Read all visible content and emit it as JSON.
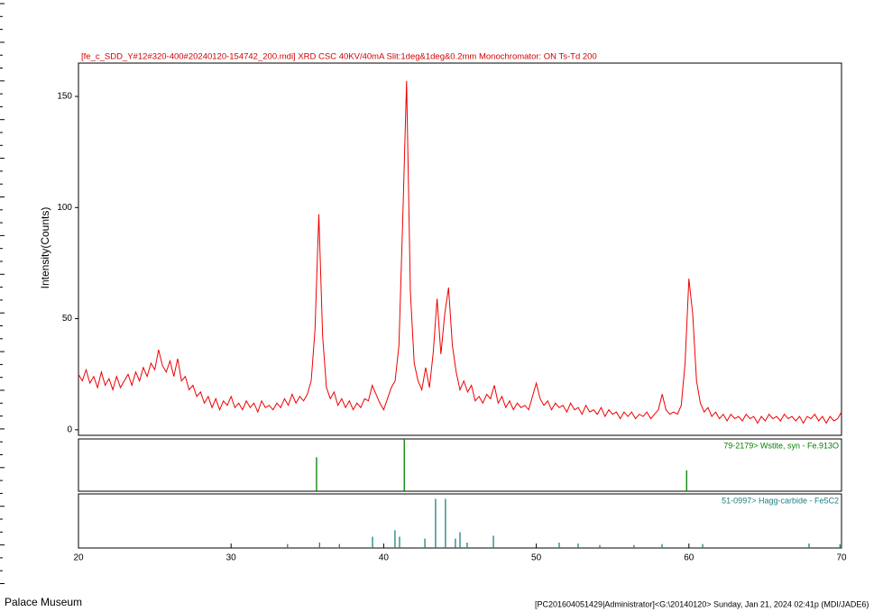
{
  "chart_data": [
    {
      "type": "line",
      "title": "[fe_c_SDD_Y#12#320-400#20240120-154742_200.mdi] XRD CSC 40KV/40mA Slit:1deg&1deg&0.2mm Monochromator: ON Ts-Td 200",
      "ylabel": "Intensity(Counts)",
      "x": [
        20,
        20.25,
        20.5,
        20.75,
        21,
        21.25,
        21.5,
        21.75,
        22,
        22.25,
        22.5,
        22.75,
        23,
        23.25,
        23.5,
        23.75,
        24,
        24.25,
        24.5,
        24.75,
        25,
        25.25,
        25.5,
        25.75,
        26,
        26.25,
        26.5,
        26.75,
        27,
        27.25,
        27.5,
        27.75,
        28,
        28.25,
        28.5,
        28.75,
        29,
        29.25,
        29.5,
        29.75,
        30,
        30.25,
        30.5,
        30.75,
        31,
        31.25,
        31.5,
        31.75,
        32,
        32.25,
        32.5,
        32.75,
        33,
        33.25,
        33.5,
        33.75,
        34,
        34.25,
        34.5,
        34.75,
        35,
        35.25,
        35.5,
        35.75,
        36,
        36.25,
        36.5,
        36.75,
        37,
        37.25,
        37.5,
        37.75,
        38,
        38.25,
        38.5,
        38.75,
        39,
        39.25,
        39.5,
        39.75,
        40,
        40.25,
        40.5,
        40.75,
        41,
        41.25,
        41.5,
        41.75,
        42,
        42.25,
        42.5,
        42.75,
        43,
        43.25,
        43.5,
        43.75,
        44,
        44.25,
        44.5,
        44.75,
        45,
        45.25,
        45.5,
        45.75,
        46,
        46.25,
        46.5,
        46.75,
        47,
        47.25,
        47.5,
        47.75,
        48,
        48.25,
        48.5,
        48.75,
        49,
        49.25,
        49.5,
        49.75,
        50,
        50.25,
        50.5,
        50.75,
        51,
        51.25,
        51.5,
        51.75,
        52,
        52.25,
        52.5,
        52.75,
        53,
        53.25,
        53.5,
        53.75,
        54,
        54.25,
        54.5,
        54.75,
        55,
        55.25,
        55.5,
        55.75,
        56,
        56.25,
        56.5,
        56.75,
        57,
        57.25,
        57.5,
        57.75,
        58,
        58.25,
        58.5,
        58.75,
        59,
        59.25,
        59.5,
        59.75,
        60,
        60.25,
        60.5,
        60.75,
        61,
        61.25,
        61.5,
        61.75,
        62,
        62.25,
        62.5,
        62.75,
        63,
        63.25,
        63.5,
        63.75,
        64,
        64.25,
        64.5,
        64.75,
        65,
        65.25,
        65.5,
        65.75,
        66,
        66.25,
        66.5,
        66.75,
        67,
        67.25,
        67.5,
        67.75,
        68,
        68.25,
        68.5,
        68.75,
        69,
        69.25,
        69.5,
        69.75,
        70
      ],
      "series": [
        {
          "color": "#ee0000",
          "values": [
            25,
            22,
            27,
            21,
            24,
            19,
            26,
            20,
            23,
            18,
            24,
            19,
            22,
            25,
            20,
            26,
            22,
            28,
            24,
            30,
            27,
            36,
            29,
            26,
            31,
            24,
            32,
            22,
            24,
            18,
            20,
            15,
            17,
            12,
            15,
            10,
            14,
            9,
            13,
            11,
            15,
            10,
            12,
            9,
            13,
            10,
            12,
            8,
            13,
            10,
            11,
            9,
            12,
            10,
            14,
            11,
            16,
            12,
            15,
            13,
            16,
            22,
            45,
            97,
            42,
            19,
            14,
            17,
            11,
            14,
            10,
            13,
            9,
            12,
            10,
            14,
            13,
            20,
            16,
            12,
            9,
            14,
            19,
            22,
            38,
            95,
            157,
            62,
            30,
            22,
            18,
            28,
            19,
            35,
            59,
            34,
            52,
            64,
            38,
            26,
            18,
            22,
            17,
            20,
            13,
            15,
            12,
            16,
            14,
            20,
            12,
            15,
            10,
            13,
            9,
            12,
            10,
            11,
            9,
            15,
            21,
            14,
            11,
            13,
            9,
            12,
            10,
            11,
            8,
            12,
            9,
            10,
            7,
            11,
            8,
            9,
            7,
            10,
            6,
            9,
            7,
            8,
            5,
            8,
            6,
            8,
            5,
            7,
            6,
            8,
            5,
            7,
            9,
            16,
            9,
            7,
            8,
            7,
            11,
            30,
            68,
            52,
            22,
            12,
            8,
            10,
            6,
            8,
            5,
            7,
            4,
            7,
            5,
            6,
            4,
            7,
            5,
            6,
            3,
            6,
            4,
            7,
            5,
            6,
            4,
            7,
            5,
            6,
            4,
            6,
            3,
            6,
            5,
            7,
            4,
            6,
            3,
            6,
            4,
            5,
            8
          ]
        }
      ],
      "xlim": [
        20,
        70
      ],
      "ylim": [
        -2.5,
        165
      ],
      "yticks": [
        0,
        50,
        100,
        150
      ]
    },
    {
      "type": "bar",
      "x": [
        35.6,
        41.35,
        59.85
      ],
      "series": [
        {
          "name": "79-2179> Wstite, syn - Fe.913O",
          "color": "#008000",
          "values": [
            65,
            100,
            40
          ]
        }
      ],
      "xlim": [
        20,
        70
      ],
      "ylim": [
        0,
        100
      ]
    },
    {
      "type": "bar",
      "x": [
        33.7,
        35.8,
        37.1,
        39.27,
        40.74,
        41.04,
        42.7,
        43.4,
        44.05,
        44.7,
        45,
        45.47,
        47.19,
        51.5,
        52.74,
        54.16,
        56.4,
        58.24,
        60.9,
        67.87,
        69.9
      ],
      "series": [
        {
          "name": "51-0997> Hagg-carbide - Fe5C2",
          "color": "#1f7f7f",
          "values": [
            8,
            11,
            8,
            23,
            36,
            23,
            19,
            100,
            100,
            19,
            32,
            11,
            25,
            11,
            9,
            6,
            6,
            8,
            8,
            9,
            8
          ]
        }
      ],
      "xlim": [
        20,
        70
      ],
      "ylim": [
        0,
        110
      ],
      "xticks": [
        20,
        30,
        40,
        50,
        60,
        70
      ]
    }
  ],
  "footer": {
    "left": "Palace Museum",
    "right": "[PC201604051429|Administrator]<G:\\20140120> Sunday, Jan 21, 2024 02:41p (MDI/JADE6)"
  }
}
